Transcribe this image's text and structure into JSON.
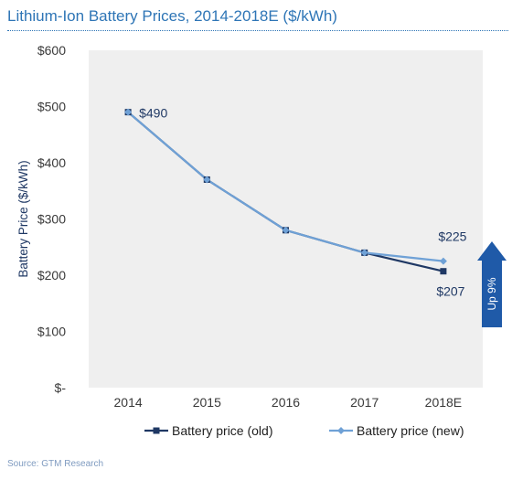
{
  "title": "Lithium-Ion Battery Prices, 2014-2018E ($/kWh)",
  "source": "Source: GTM Research",
  "chart_data": {
    "type": "line",
    "categories": [
      "2014",
      "2015",
      "2016",
      "2017",
      "2018E"
    ],
    "ylabel": "Battery Price ($/kWh)",
    "ylim": [
      0,
      600
    ],
    "yticks": [
      0,
      100,
      200,
      300,
      400,
      500,
      600
    ],
    "ytick_labels": [
      "$-",
      "$100",
      "$200",
      "$300",
      "$400",
      "$500",
      "$600"
    ],
    "series": [
      {
        "name": "Battery price (old)",
        "values": [
          490,
          370,
          280,
          240,
          207
        ],
        "color": "#1f3864",
        "marker": "square"
      },
      {
        "name": "Battery price (new)",
        "values": [
          490,
          370,
          280,
          240,
          225
        ],
        "color": "#6fa1d6",
        "marker": "diamond"
      }
    ],
    "data_labels": [
      {
        "text": "$490",
        "series": 0,
        "index": 0
      },
      {
        "text": "$225",
        "series": 1,
        "index": 4
      },
      {
        "text": "$207",
        "series": 0,
        "index": 4
      }
    ],
    "annotation": {
      "text": "Up 9%",
      "color": "#1f5aa8"
    },
    "plot_background": "#efefef",
    "legend_position": "bottom"
  }
}
